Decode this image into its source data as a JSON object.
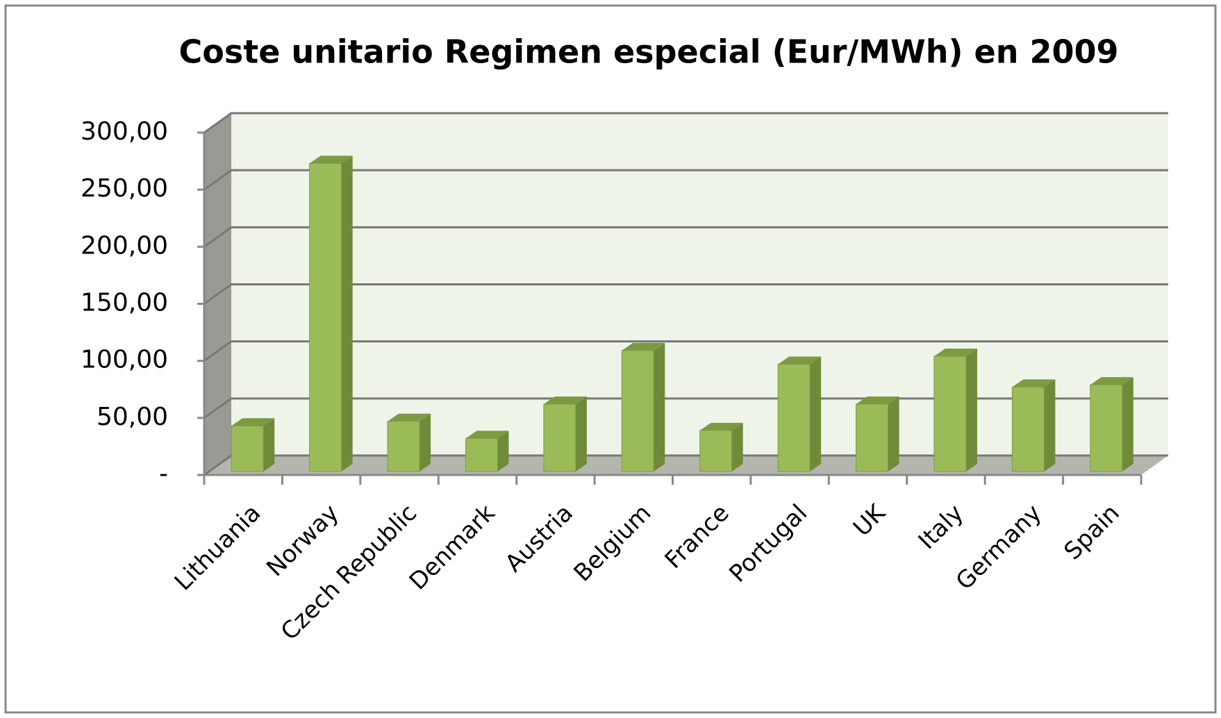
{
  "chart_data": {
    "type": "bar3d",
    "title": "Coste unitario Regimen especial (Eur/MWh) en 2009",
    "categories": [
      "Lithuania",
      "Norway",
      "Czech Republic",
      "Denmark",
      "Austria",
      "Belgium",
      "France",
      "Portugal",
      "UK",
      "Italy",
      "Germany",
      "Spain"
    ],
    "values": [
      40,
      270,
      44,
      29,
      59,
      106,
      36,
      94,
      59,
      101,
      74,
      76
    ],
    "color": "#9bbb59",
    "ylim": [
      0,
      300
    ],
    "yticks": [
      {
        "value": 0,
        "label": "-"
      },
      {
        "value": 50,
        "label": "50,00"
      },
      {
        "value": 100,
        "label": "100,00"
      },
      {
        "value": 150,
        "label": "150,00"
      },
      {
        "value": 200,
        "label": "200,00"
      },
      {
        "value": 250,
        "label": "250,00"
      },
      {
        "value": 300,
        "label": "300,00"
      }
    ],
    "grid": true
  }
}
